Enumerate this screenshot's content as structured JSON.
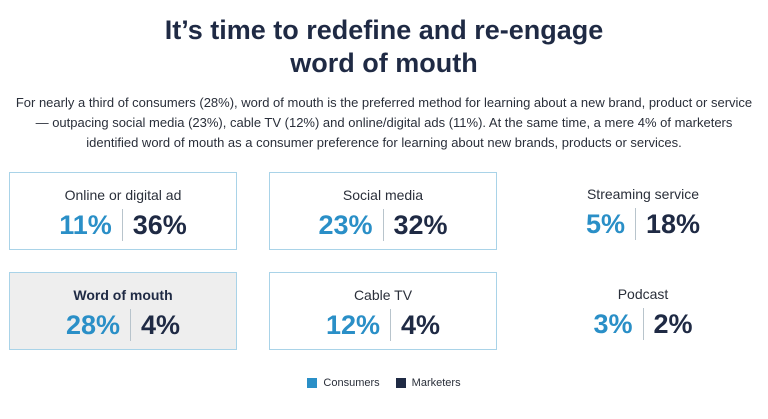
{
  "title_line1": "It’s time to redefine and re-engage",
  "title_line2": "word of mouth",
  "intro": "For nearly a third of consumers (28%), word of mouth is the preferred method for learning about a new brand, product or service — outpacing social media (23%), cable TV (12%) and online/digital ads (11%). At the same time, a mere 4% of marketers identified word of mouth as a consumer preference for learning about new brands, products or services.",
  "colors": {
    "consumers": "#2a8fc7",
    "marketers": "#1f2a44"
  },
  "chart_data": {
    "type": "table",
    "categories": [
      "Online or digital ad",
      "Social media",
      "Streaming service",
      "Word of mouth",
      "Cable TV",
      "Podcast"
    ],
    "series": [
      {
        "name": "Consumers",
        "values": [
          11,
          23,
          5,
          28,
          12,
          3
        ]
      },
      {
        "name": "Marketers",
        "values": [
          36,
          32,
          18,
          4,
          4,
          2
        ]
      }
    ],
    "display": {
      "consumers": [
        "11%",
        "23%",
        "5%",
        "28%",
        "12%",
        "3%"
      ],
      "marketers": [
        "36%",
        "32%",
        "18%",
        "4%",
        "4%",
        "2%"
      ]
    },
    "legend": [
      "Consumers",
      "Marketers"
    ],
    "legend_position": "bottom"
  }
}
